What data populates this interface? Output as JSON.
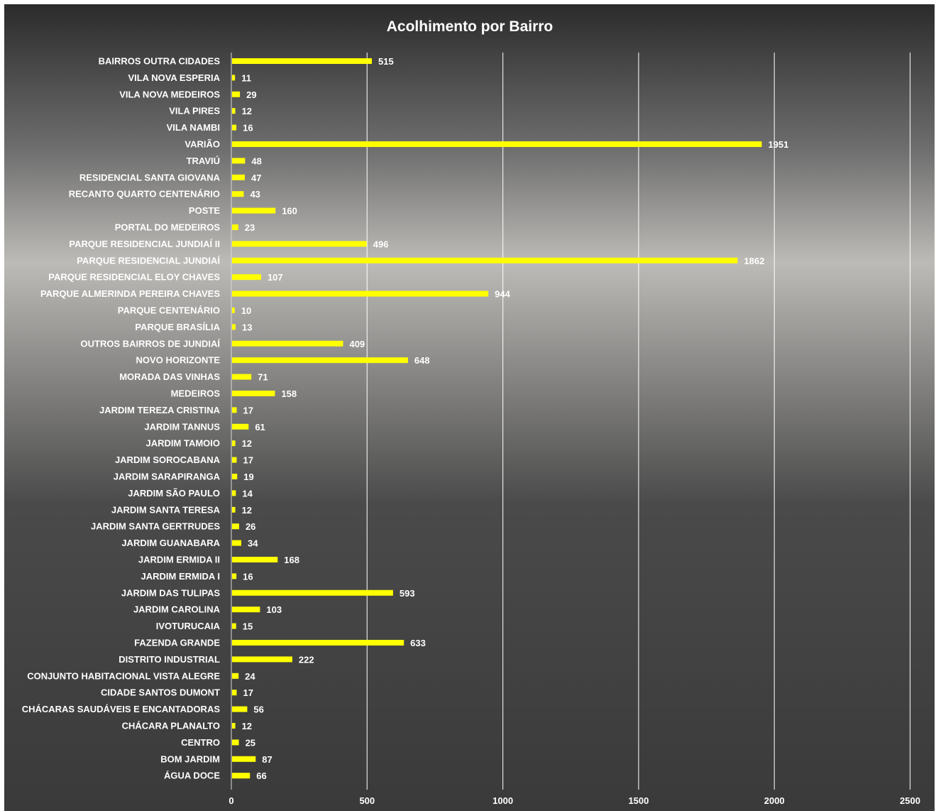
{
  "chart_data": {
    "type": "bar",
    "orientation": "horizontal",
    "title": "Acolhimento por Bairro",
    "xlabel": "",
    "ylabel": "",
    "xlim": [
      0,
      2500
    ],
    "x_ticks": [
      0,
      500,
      1000,
      1500,
      2000,
      2500
    ],
    "grid": true,
    "legend": "none",
    "data_labels": true,
    "categories": [
      "BAIRROS OUTRA CIDADES",
      "VILA NOVA ESPERIA",
      "VILA NOVA MEDEIROS",
      "VILA PIRES",
      "VILA NAMBI",
      "VARIÃO",
      "TRAVIÚ",
      "RESIDENCIAL SANTA GIOVANA",
      "RECANTO QUARTO CENTENÁRIO",
      "POSTE",
      "PORTAL DO MEDEIROS",
      "PARQUE RESIDENCIAL JUNDIAÍ II",
      "PARQUE RESIDENCIAL JUNDIAÍ",
      "PARQUE RESIDENCIAL ELOY CHAVES",
      "PARQUE ALMERINDA PEREIRA CHAVES",
      "PARQUE CENTENÁRIO",
      "PARQUE BRASÍLIA",
      "OUTROS BAIRROS DE JUNDIAÍ",
      "NOVO HORIZONTE",
      "MORADA DAS VINHAS",
      "MEDEIROS",
      "JARDIM TEREZA CRISTINA",
      "JARDIM TANNUS",
      "JARDIM TAMOIO",
      "JARDIM SOROCABANA",
      "JARDIM SARAPIRANGA",
      "JARDIM SÃO PAULO",
      "JARDIM SANTA TERESA",
      "JARDIM SANTA GERTRUDES",
      "JARDIM GUANABARA",
      "JARDIM ERMIDA II",
      "JARDIM ERMIDA I",
      "JARDIM DAS TULIPAS",
      "JARDIM CAROLINA",
      "IVOTURUCAIA",
      "FAZENDA GRANDE",
      "DISTRITO INDUSTRIAL",
      "CONJUNTO HABITACIONAL VISTA ALEGRE",
      "CIDADE SANTOS DUMONT",
      "CHÁCARAS SAUDÁVEIS E ENCANTADORAS",
      "CHÁCARA PLANALTO",
      "CENTRO",
      "BOM JARDIM",
      "ÁGUA DOCE"
    ],
    "values": [
      515,
      11,
      29,
      12,
      16,
      1951,
      48,
      47,
      43,
      160,
      23,
      496,
      1862,
      107,
      944,
      10,
      13,
      409,
      648,
      71,
      158,
      17,
      61,
      12,
      17,
      19,
      14,
      12,
      26,
      34,
      168,
      16,
      593,
      103,
      15,
      633,
      222,
      24,
      17,
      56,
      12,
      25,
      87,
      66
    ],
    "colors": {
      "bar": "#ffff00",
      "text": "#ffffff",
      "grid": "#ffffff"
    }
  }
}
